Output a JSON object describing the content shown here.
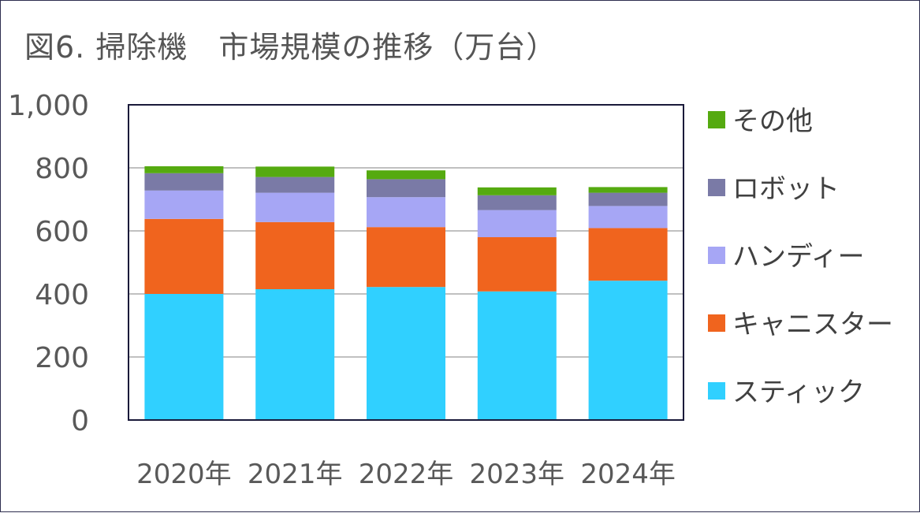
{
  "title": "図6. 掃除機　市場規模の推移（万台）",
  "colors": {
    "stick": "#30d0ff",
    "canister": "#f0641e",
    "handy": "#a6a6f5",
    "robot": "#7a7aa6",
    "other": "#55aa10",
    "grid": "#c0c0c0",
    "frame": "#1a1a3a"
  },
  "chart_data": {
    "type": "bar",
    "stacked": true,
    "title": "図6. 掃除機　市場規模の推移（万台）",
    "categories": [
      "2020年",
      "2021年",
      "2022年",
      "2023年",
      "2024年"
    ],
    "y_ticks": [
      "0",
      "200",
      "400",
      "600",
      "800",
      "1,000"
    ],
    "ylim": [
      0,
      1000
    ],
    "grid": true,
    "legend_position": "right",
    "series": [
      {
        "name": "スティック",
        "color": "#30d0ff",
        "values": [
          400,
          415,
          422,
          408,
          442
        ]
      },
      {
        "name": "キャニスター",
        "color": "#f0641e",
        "values": [
          238,
          213,
          190,
          172,
          167
        ]
      },
      {
        "name": "ハンディー",
        "color": "#a6a6f5",
        "values": [
          90,
          93,
          95,
          86,
          70
        ]
      },
      {
        "name": "ロボット",
        "color": "#7a7aa6",
        "values": [
          55,
          50,
          57,
          47,
          42
        ]
      },
      {
        "name": "その他",
        "color": "#55aa10",
        "values": [
          22,
          33,
          28,
          25,
          18
        ]
      }
    ]
  }
}
